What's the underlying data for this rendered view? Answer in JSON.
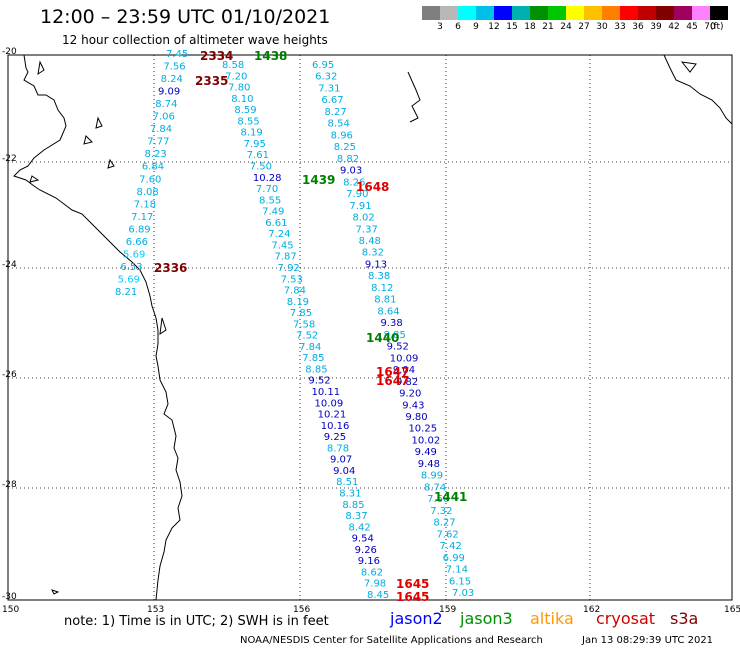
{
  "header": {
    "title": "12:00 – 23:59 UTC 01/10/2021",
    "subtitle": "12 hour collection of altimeter wave heights"
  },
  "colorbar": {
    "colors": [
      "#7f7f7f",
      "#b8b8b8",
      "#00ffff",
      "#00c0e8",
      "#0000ff",
      "#00b0b0",
      "#009000",
      "#00c800",
      "#ffff00",
      "#ffc000",
      "#ff8000",
      "#ff0000",
      "#c00000",
      "#800000",
      "#a00060",
      "#ff80ff",
      "#000000"
    ],
    "labels": [
      "3",
      "6",
      "9",
      "12",
      "15",
      "18",
      "21",
      "24",
      "27",
      "30",
      "33",
      "36",
      "39",
      "42",
      "45",
      "70"
    ],
    "unit": "(ft)"
  },
  "map": {
    "lat_labels": [
      "-20",
      "-22",
      "-24",
      "-26",
      "-28",
      "-30"
    ],
    "lon_labels": [
      "150",
      "153",
      "156",
      "159",
      "162",
      "165"
    ]
  },
  "tracks": [
    {
      "satellite": "jason3",
      "values": [
        {
          "v": "6.95",
          "c": "#00aee0"
        },
        {
          "v": "6.32",
          "c": "#00aee0"
        },
        {
          "v": "7.31",
          "c": "#00aee0"
        },
        {
          "v": "6.67",
          "c": "#00aee0"
        },
        {
          "v": "8.27",
          "c": "#00aee0"
        },
        {
          "v": "8.54",
          "c": "#00aee0"
        },
        {
          "v": "8.96",
          "c": "#00aee0"
        },
        {
          "v": "8.25",
          "c": "#00aee0"
        },
        {
          "v": "8.82",
          "c": "#00aee0"
        },
        {
          "v": "9.03",
          "c": "#0000c0"
        },
        {
          "v": "8.26",
          "c": "#00aee0"
        },
        {
          "v": "7.90",
          "c": "#00aee0"
        },
        {
          "v": "7.91",
          "c": "#00aee0"
        },
        {
          "v": "8.02",
          "c": "#00aee0"
        },
        {
          "v": "7.37",
          "c": "#00aee0"
        },
        {
          "v": "8.48",
          "c": "#00aee0"
        },
        {
          "v": "8.32",
          "c": "#00aee0"
        },
        {
          "v": "9.13",
          "c": "#0000c0"
        },
        {
          "v": "8.38",
          "c": "#00aee0"
        },
        {
          "v": "8.12",
          "c": "#00aee0"
        },
        {
          "v": "8.81",
          "c": "#00aee0"
        },
        {
          "v": "8.64",
          "c": "#00aee0"
        },
        {
          "v": "9.38",
          "c": "#0000c0"
        },
        {
          "v": "8.85",
          "c": "#00aee0"
        },
        {
          "v": "9.52",
          "c": "#0000c0"
        },
        {
          "v": "10.09",
          "c": "#0000c0"
        },
        {
          "v": "9.04",
          "c": "#0000c0"
        },
        {
          "v": "9.82",
          "c": "#0000c0"
        },
        {
          "v": "9.20",
          "c": "#0000c0"
        },
        {
          "v": "9.43",
          "c": "#0000c0"
        },
        {
          "v": "9.80",
          "c": "#0000c0"
        },
        {
          "v": "10.25",
          "c": "#0000c0"
        },
        {
          "v": "10.02",
          "c": "#0000c0"
        },
        {
          "v": "9.49",
          "c": "#0000c0"
        },
        {
          "v": "9.48",
          "c": "#0000c0"
        },
        {
          "v": "8.99",
          "c": "#00aee0"
        },
        {
          "v": "8.74",
          "c": "#00aee0"
        },
        {
          "v": "7.60",
          "c": "#00aee0"
        },
        {
          "v": "7.32",
          "c": "#00aee0"
        },
        {
          "v": "8.27",
          "c": "#00aee0"
        },
        {
          "v": "7.62",
          "c": "#00aee0"
        },
        {
          "v": "7.42",
          "c": "#00aee0"
        },
        {
          "v": "6.99",
          "c": "#00aee0"
        },
        {
          "v": "7.14",
          "c": "#00aee0"
        },
        {
          "v": "6.15",
          "c": "#00aee0"
        },
        {
          "v": "7.03",
          "c": "#00aee0"
        }
      ]
    },
    {
      "satellite": "cryosat-east",
      "values": [
        {
          "v": "7.45",
          "c": "#00aee0"
        },
        {
          "v": "7.56",
          "c": "#00aee0"
        },
        {
          "v": "8.24",
          "c": "#00aee0"
        },
        {
          "v": "9.09",
          "c": "#0000c0"
        },
        {
          "v": "8.74",
          "c": "#00aee0"
        },
        {
          "v": "7.06",
          "c": "#00aee0"
        },
        {
          "v": "7.84",
          "c": "#00aee0"
        },
        {
          "v": "7.77",
          "c": "#00aee0"
        },
        {
          "v": "8.23",
          "c": "#00aee0"
        },
        {
          "v": "6.84",
          "c": "#00aee0"
        },
        {
          "v": "7.60",
          "c": "#00aee0"
        },
        {
          "v": "8.08",
          "c": "#00aee0"
        },
        {
          "v": "7.18",
          "c": "#00aee0"
        },
        {
          "v": "7.17",
          "c": "#00aee0"
        },
        {
          "v": "6.89",
          "c": "#00aee0"
        },
        {
          "v": "6.66",
          "c": "#00aee0"
        },
        {
          "v": "5.69",
          "c": "#00d0ff"
        },
        {
          "v": "6.53",
          "c": "#00aee0"
        },
        {
          "v": "5.69",
          "c": "#00d0ff"
        },
        {
          "v": "8.21",
          "c": "#00aee0"
        }
      ]
    },
    {
      "satellite": "jason3-west",
      "values": [
        {
          "v": "8.58",
          "c": "#00aee0"
        },
        {
          "v": "7.20",
          "c": "#00aee0"
        },
        {
          "v": "7.80",
          "c": "#00aee0"
        },
        {
          "v": "8.10",
          "c": "#00aee0"
        },
        {
          "v": "8.59",
          "c": "#00aee0"
        },
        {
          "v": "8.55",
          "c": "#00aee0"
        },
        {
          "v": "8.19",
          "c": "#00aee0"
        },
        {
          "v": "7.95",
          "c": "#00aee0"
        },
        {
          "v": "7.61",
          "c": "#00aee0"
        },
        {
          "v": "7.50",
          "c": "#00aee0"
        },
        {
          "v": "10.28",
          "c": "#0000c0"
        },
        {
          "v": "7.70",
          "c": "#00aee0"
        },
        {
          "v": "8.55",
          "c": "#00aee0"
        },
        {
          "v": "7.49",
          "c": "#00aee0"
        },
        {
          "v": "6.61",
          "c": "#00aee0"
        },
        {
          "v": "7.24",
          "c": "#00aee0"
        },
        {
          "v": "7.45",
          "c": "#00aee0"
        },
        {
          "v": "7.87",
          "c": "#00aee0"
        },
        {
          "v": "7.92",
          "c": "#00aee0"
        },
        {
          "v": "7.53",
          "c": "#00aee0"
        },
        {
          "v": "7.84",
          "c": "#00aee0"
        },
        {
          "v": "8.19",
          "c": "#00aee0"
        },
        {
          "v": "7.85",
          "c": "#00aee0"
        },
        {
          "v": "7.58",
          "c": "#00aee0"
        },
        {
          "v": "7.52",
          "c": "#00aee0"
        },
        {
          "v": "7.84",
          "c": "#00aee0"
        },
        {
          "v": "7.85",
          "c": "#00aee0"
        },
        {
          "v": "8.85",
          "c": "#00aee0"
        },
        {
          "v": "9.52",
          "c": "#0000c0"
        },
        {
          "v": "10.11",
          "c": "#0000c0"
        },
        {
          "v": "10.09",
          "c": "#0000c0"
        },
        {
          "v": "10.21",
          "c": "#0000c0"
        },
        {
          "v": "10.16",
          "c": "#0000c0"
        },
        {
          "v": "9.25",
          "c": "#0000c0"
        },
        {
          "v": "8.78",
          "c": "#00aee0"
        },
        {
          "v": "9.07",
          "c": "#0000c0"
        },
        {
          "v": "9.04",
          "c": "#0000c0"
        },
        {
          "v": "8.51",
          "c": "#00aee0"
        },
        {
          "v": "8.31",
          "c": "#00aee0"
        },
        {
          "v": "8.85",
          "c": "#00aee0"
        },
        {
          "v": "8.37",
          "c": "#00aee0"
        },
        {
          "v": "8.42",
          "c": "#00aee0"
        },
        {
          "v": "9.54",
          "c": "#0000c0"
        },
        {
          "v": "9.26",
          "c": "#0000c0"
        },
        {
          "v": "9.16",
          "c": "#0000c0"
        },
        {
          "v": "8.62",
          "c": "#00aee0"
        },
        {
          "v": "7.98",
          "c": "#00aee0"
        },
        {
          "v": "8.45",
          "c": "#00aee0"
        }
      ]
    }
  ],
  "time_markers": [
    {
      "t": "2334",
      "c": "#800000"
    },
    {
      "t": "1438",
      "c": "#008000"
    },
    {
      "t": "2335",
      "c": "#800000"
    },
    {
      "t": "1439",
      "c": "#008000"
    },
    {
      "t": "1648",
      "c": "#e00000"
    },
    {
      "t": "2336",
      "c": "#800000"
    },
    {
      "t": "1440",
      "c": "#008000"
    },
    {
      "t": "1647",
      "c": "#e00000"
    },
    {
      "t": "1647",
      "c": "#e00000"
    },
    {
      "t": "1441",
      "c": "#008000"
    },
    {
      "t": "1645",
      "c": "#e00000"
    },
    {
      "t": "1645",
      "c": "#e00000"
    }
  ],
  "footer": {
    "note": "note:  1) Time is in UTC;  2) SWH is in feet",
    "legend": [
      {
        "label": "jason2",
        "color": "#0000ff"
      },
      {
        "label": "jason3",
        "color": "#009000"
      },
      {
        "label": "altika",
        "color": "#ff9900"
      },
      {
        "label": "cryosat",
        "color": "#d00000"
      },
      {
        "label": "s3a",
        "color": "#800000"
      }
    ],
    "credit": "NOAA/NESDIS Center for Satellite Applications and Research",
    "timestamp": "Jan 13 08:29:39 UTC 2021"
  }
}
